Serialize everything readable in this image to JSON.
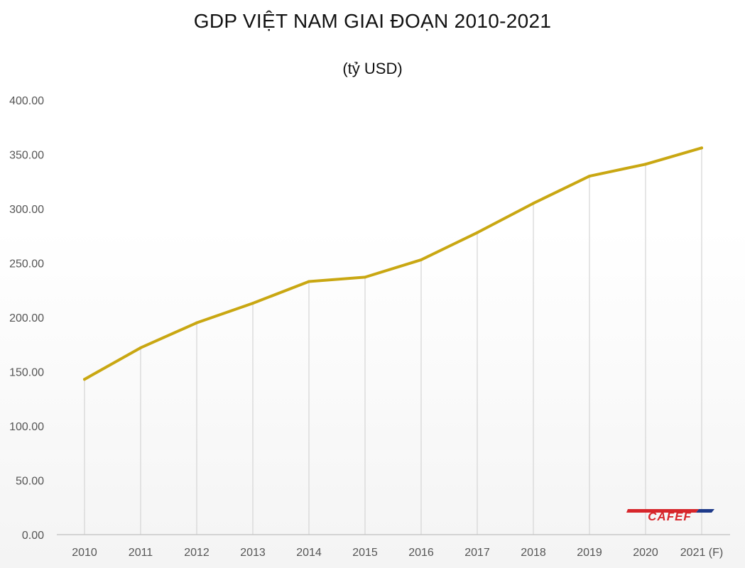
{
  "title": "GDP VIỆT NAM GIAI ĐOẠN 2010-2021",
  "subtitle": "(tỷ USD)",
  "logo_text": "CAFEF",
  "colors": {
    "line": "#c9a712",
    "grid": "#d4d4d4",
    "axis": "#c8c8c8",
    "tick_text": "#555555",
    "logo_red": "#d7262b",
    "logo_blue": "#1e3a8a"
  },
  "chart_data": {
    "type": "line",
    "title": "GDP VIỆT NAM GIAI ĐOẠN 2010-2021",
    "subtitle": "(tỷ USD)",
    "xlabel": "",
    "ylabel": "",
    "categories": [
      "2010",
      "2011",
      "2012",
      "2013",
      "2014",
      "2015",
      "2016",
      "2017",
      "2018",
      "2019",
      "2020",
      "2021 (F)"
    ],
    "series": [
      {
        "values": [
          143,
          172,
          195,
          213,
          233,
          237,
          253,
          278,
          305,
          330,
          341,
          356
        ]
      }
    ],
    "ylim": [
      0,
      400
    ],
    "yticks": [
      "0.00",
      "50.00",
      "100.00",
      "150.00",
      "200.00",
      "250.00",
      "300.00",
      "350.00",
      "400.00"
    ],
    "vertical_grid": true,
    "horizontal_grid": false,
    "legend": "none"
  }
}
